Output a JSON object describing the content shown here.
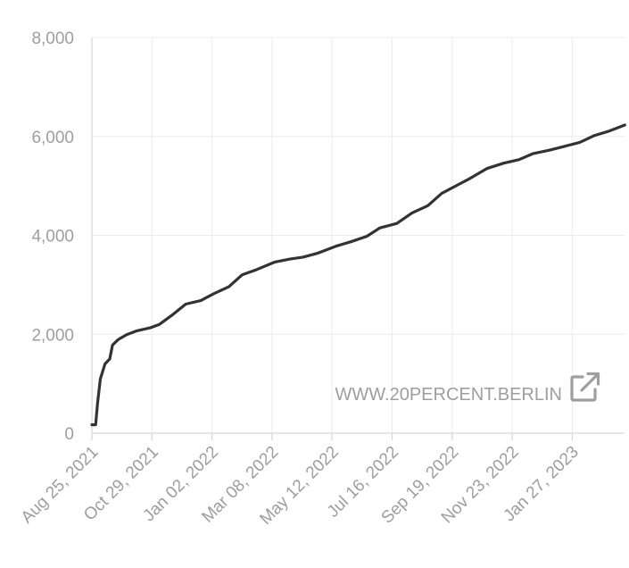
{
  "chart_data": {
    "type": "line",
    "title": "",
    "xlabel": "",
    "ylabel": "",
    "ylim": [
      0,
      8000
    ],
    "y_ticks": [
      "0",
      "2,000",
      "4,000",
      "6,000",
      "8,000"
    ],
    "x_ticks": [
      "Aug 25, 2021",
      "Oct 29, 2021",
      "Jan 02, 2022",
      "Mar 08, 2022",
      "May 12, 2022",
      "Jul 16, 2022",
      "Sep 19, 2022",
      "Nov 23, 2022",
      "Jan 27, 2023"
    ],
    "grid": true,
    "legend": "none",
    "series": [
      {
        "color": "#333333",
        "points": [
          [
            "2021-08-25",
            170
          ],
          [
            "2021-08-29",
            170
          ],
          [
            "2021-08-31",
            600
          ],
          [
            "2021-09-03",
            1100
          ],
          [
            "2021-09-08",
            1400
          ],
          [
            "2021-09-13",
            1500
          ],
          [
            "2021-09-16",
            1780
          ],
          [
            "2021-09-22",
            1890
          ],
          [
            "2021-10-01",
            1990
          ],
          [
            "2021-10-12",
            2070
          ],
          [
            "2021-10-26",
            2130
          ],
          [
            "2021-11-05",
            2200
          ],
          [
            "2021-11-18",
            2380
          ],
          [
            "2021-12-03",
            2610
          ],
          [
            "2021-12-19",
            2680
          ],
          [
            "2022-01-02",
            2820
          ],
          [
            "2022-01-18",
            2960
          ],
          [
            "2022-02-01",
            3200
          ],
          [
            "2022-02-17",
            3310
          ],
          [
            "2022-03-08",
            3460
          ],
          [
            "2022-03-24",
            3520
          ],
          [
            "2022-04-07",
            3560
          ],
          [
            "2022-04-23",
            3640
          ],
          [
            "2022-05-12",
            3780
          ],
          [
            "2022-05-28",
            3870
          ],
          [
            "2022-06-14",
            3980
          ],
          [
            "2022-06-28",
            4150
          ],
          [
            "2022-07-16",
            4240
          ],
          [
            "2022-08-01",
            4450
          ],
          [
            "2022-08-18",
            4600
          ],
          [
            "2022-09-02",
            4850
          ],
          [
            "2022-09-19",
            5020
          ],
          [
            "2022-10-02",
            5150
          ],
          [
            "2022-10-20",
            5350
          ],
          [
            "2022-11-07",
            5460
          ],
          [
            "2022-11-23",
            5530
          ],
          [
            "2022-12-08",
            5650
          ],
          [
            "2022-12-25",
            5720
          ],
          [
            "2023-01-11",
            5800
          ],
          [
            "2023-01-27",
            5880
          ],
          [
            "2023-02-12",
            6020
          ],
          [
            "2023-02-26",
            6100
          ],
          [
            "2023-03-16",
            6230
          ]
        ]
      }
    ]
  },
  "watermark": {
    "text": "WWW.20PERCENT.BERLIN",
    "icon": "external-link-icon",
    "color": "#9e9e9e"
  }
}
